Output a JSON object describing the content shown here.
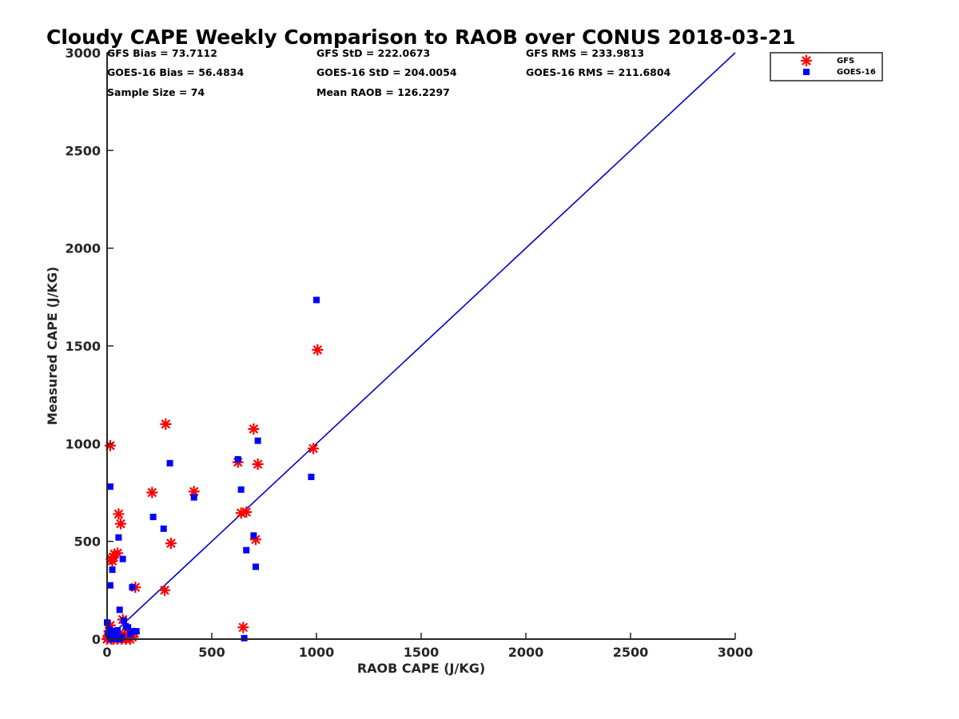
{
  "chart_data": {
    "type": "scatter",
    "title": "Cloudy CAPE Weekly Comparison to RAOB over CONUS 2018-03-21",
    "xlabel": "RAOB CAPE (J/KG)",
    "ylabel": "Measured CAPE (J/KG)",
    "xlim": [
      0,
      3000
    ],
    "ylim": [
      0,
      3000
    ],
    "xticks": [
      0,
      500,
      1000,
      1500,
      2000,
      2500,
      3000
    ],
    "yticks": [
      0,
      500,
      1000,
      1500,
      2000,
      2500,
      3000
    ],
    "tick_labels": [
      "0",
      "500",
      "1000",
      "1500",
      "2000",
      "2500",
      "3000"
    ],
    "grid": false,
    "legend_position": "top-right-outside",
    "stats": [
      "GFS Bias = 73.7112",
      "GFS StD = 222.0673",
      "GFS RMS = 233.9813",
      "GOES-16 Bias = 56.4834",
      "GOES-16 StD = 204.0054",
      "GOES-16 RMS = 211.6804",
      "Sample Size = 74",
      "Mean RAOB = 126.2297"
    ],
    "reference_line": {
      "x": [
        0,
        3000
      ],
      "y": [
        0,
        3000
      ],
      "color": "#0000cc"
    },
    "series": [
      {
        "name": "GFS",
        "marker": "asterisk",
        "color": "#ff0000",
        "x": [
          15,
          20,
          25,
          30,
          35,
          50,
          55,
          65,
          75,
          85,
          105,
          135,
          215,
          275,
          280,
          305,
          415,
          625,
          640,
          665,
          700,
          710,
          720,
          985,
          1005,
          650,
          0,
          5,
          10,
          15,
          20,
          25,
          30,
          40,
          50,
          60,
          70,
          80,
          90,
          100,
          110,
          120,
          130
        ],
        "y": [
          990,
          410,
          400,
          420,
          435,
          440,
          640,
          590,
          100,
          20,
          30,
          265,
          750,
          250,
          1100,
          490,
          755,
          905,
          645,
          650,
          1075,
          510,
          895,
          975,
          1480,
          60,
          0,
          10,
          40,
          70,
          0,
          20,
          0,
          10,
          0,
          30,
          0,
          10,
          0,
          20,
          0,
          10,
          30
        ]
      },
      {
        "name": "GOES-16",
        "marker": "square",
        "color": "#0000ff",
        "x": [
          15,
          15,
          25,
          55,
          60,
          75,
          90,
          120,
          140,
          220,
          270,
          300,
          415,
          625,
          640,
          655,
          665,
          700,
          710,
          720,
          975,
          1000,
          0,
          5,
          10,
          15,
          20,
          25,
          30,
          35,
          40,
          45,
          50,
          60,
          70,
          80,
          100,
          110,
          130
        ],
        "y": [
          780,
          275,
          355,
          520,
          150,
          410,
          65,
          265,
          40,
          625,
          565,
          900,
          725,
          920,
          765,
          5,
          455,
          530,
          370,
          1015,
          830,
          1735,
          85,
          30,
          50,
          10,
          0,
          20,
          40,
          5,
          15,
          35,
          45,
          0,
          10,
          95,
          60,
          25,
          40
        ]
      }
    ]
  }
}
